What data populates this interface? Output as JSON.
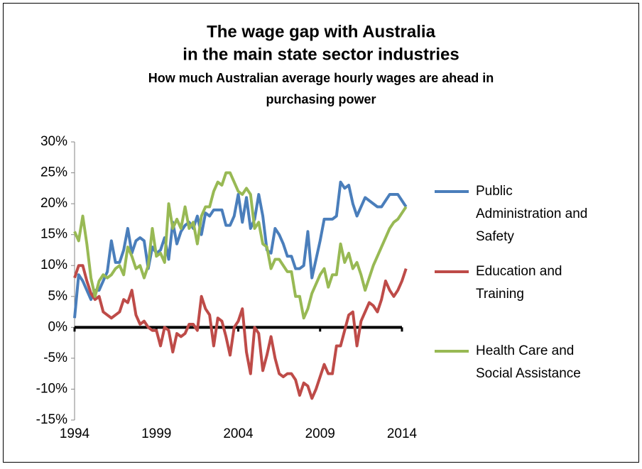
{
  "chart_data": {
    "type": "line",
    "title": [
      "The wage gap with Australia",
      "in the main state sector industries"
    ],
    "subtitle": [
      "How much Australian average hourly wages are ahead in",
      "purchasing power"
    ],
    "x": [
      1994,
      1994.25,
      1994.5,
      1994.75,
      1995,
      1995.25,
      1995.5,
      1995.75,
      1996,
      1996.25,
      1996.5,
      1996.75,
      1997,
      1997.25,
      1997.5,
      1997.75,
      1998,
      1998.25,
      1998.5,
      1998.75,
      1999,
      1999.25,
      1999.5,
      1999.75,
      2000,
      2000.25,
      2000.5,
      2000.75,
      2001,
      2001.25,
      2001.5,
      2001.75,
      2002,
      2002.25,
      2002.5,
      2002.75,
      2003,
      2003.25,
      2003.5,
      2003.75,
      2004,
      2004.25,
      2004.5,
      2004.75,
      2005,
      2005.25,
      2005.5,
      2005.75,
      2006,
      2006.25,
      2006.5,
      2006.75,
      2007,
      2007.25,
      2007.5,
      2007.75,
      2008,
      2008.25,
      2008.5,
      2008.75,
      2009,
      2009.25,
      2009.5,
      2009.75,
      2010,
      2010.25,
      2010.5,
      2010.75,
      2011,
      2011.25,
      2011.5,
      2011.75,
      2012,
      2012.25,
      2012.5,
      2012.75,
      2013,
      2013.25,
      2013.5,
      2013.75,
      2014,
      2014.25
    ],
    "series": [
      {
        "name": "Public Administration and Safety",
        "color": "#4a7ebb",
        "values": [
          1.5,
          8.5,
          7.5,
          6,
          4.5,
          6,
          6,
          7.5,
          9,
          14,
          10.5,
          10.5,
          12.5,
          16,
          12,
          14,
          14.5,
          14,
          9.5,
          13,
          12,
          12.5,
          14.5,
          11,
          17,
          13.5,
          15.5,
          16.5,
          17,
          16,
          18,
          15,
          18.5,
          18,
          19,
          19,
          19,
          16.5,
          16.5,
          18,
          21.5,
          17,
          21,
          16,
          17.5,
          21.5,
          18,
          12.5,
          12,
          16,
          15,
          13.5,
          11.5,
          11.5,
          9.5,
          9.5,
          10,
          15.5,
          8,
          11,
          14,
          17.5,
          17.5,
          17.5,
          18,
          23.5,
          22.5,
          23,
          20,
          18,
          19.5,
          21,
          20.5,
          20,
          19.5,
          19.5,
          20.5,
          21.5,
          21.5,
          21.5,
          20.5,
          19.5
        ]
      },
      {
        "name": "Education and Training",
        "color": "#be4b48",
        "values": [
          8,
          10,
          10,
          7.5,
          5.5,
          4.5,
          5,
          2.5,
          2,
          1.5,
          2,
          2.5,
          4.5,
          4,
          6,
          2,
          0.5,
          1,
          0,
          -0.5,
          -0.5,
          -3,
          0,
          -0.5,
          -4,
          -1,
          -1.5,
          -1,
          0.5,
          0.5,
          -0.5,
          5,
          3,
          2,
          -3,
          1.5,
          1,
          -1.5,
          -4.5,
          0,
          1,
          3,
          -4,
          -7.5,
          0,
          -1,
          -7,
          -4.5,
          -1.5,
          -5,
          -7.5,
          -8,
          -7.5,
          -7.5,
          -8.5,
          -11,
          -9,
          -9.5,
          -11.5,
          -10,
          -8,
          -6,
          -7.5,
          -7.5,
          -3,
          -3,
          -0.5,
          2,
          2.5,
          -3,
          1,
          2.5,
          4,
          3.5,
          2.5,
          4.5,
          7.5,
          6,
          5,
          6,
          7.5,
          9.5
        ]
      },
      {
        "name": "Health Care and Social Assistance",
        "color": "#98b954",
        "values": [
          15.5,
          14,
          18,
          13.5,
          8,
          5,
          7.5,
          8.5,
          8,
          8.5,
          9.5,
          10,
          8.5,
          13,
          11.5,
          9.5,
          10,
          8,
          10,
          16,
          11.5,
          12,
          10.5,
          20,
          16,
          17.5,
          16,
          19.5,
          16,
          17,
          13.5,
          18,
          19.5,
          19.5,
          22,
          23.5,
          23,
          25,
          25,
          23.5,
          22,
          21.5,
          22.5,
          21.5,
          16,
          17,
          13.5,
          13,
          9.5,
          11,
          11,
          10,
          9,
          9,
          5,
          5,
          1.5,
          3,
          5.5,
          7,
          8.5,
          9.5,
          6.5,
          8.5,
          8.5,
          13.5,
          10.5,
          12,
          9.5,
          10.5,
          8.5,
          6,
          8,
          10,
          11.5,
          13,
          14.5,
          16,
          17,
          17.5,
          18.5,
          19.5
        ]
      }
    ],
    "xlim": [
      1994,
      2014
    ],
    "xticks": [
      1994,
      1999,
      2004,
      2009,
      2014
    ],
    "ylim": [
      -15,
      30
    ],
    "yticks": [
      {
        "value": -15,
        "label": "-15%"
      },
      {
        "value": -10,
        "label": "-10%"
      },
      {
        "value": -5,
        "label": "-5%"
      },
      {
        "value": 0,
        "label": "0%"
      },
      {
        "value": 5,
        "label": "5%"
      },
      {
        "value": 10,
        "label": "10%"
      },
      {
        "value": 15,
        "label": "15%"
      },
      {
        "value": 20,
        "label": "20%"
      },
      {
        "value": 25,
        "label": "25%"
      },
      {
        "value": 30,
        "label": "30%"
      }
    ],
    "legend": "right"
  }
}
